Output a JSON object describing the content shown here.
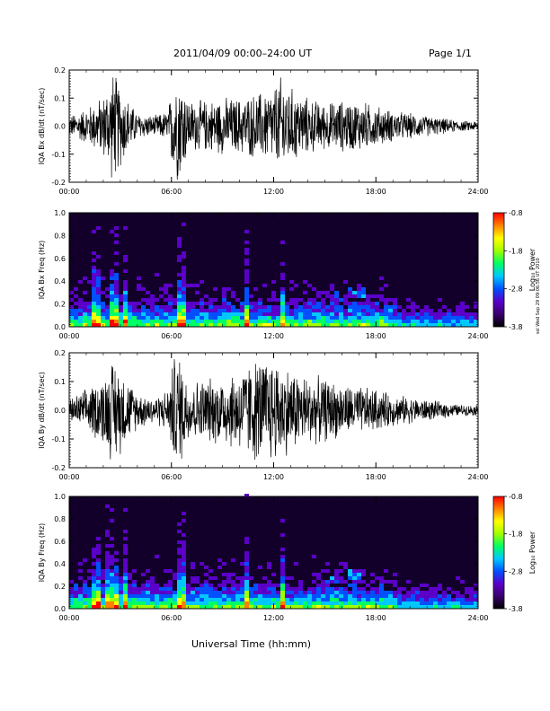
{
  "header": {
    "title": "2011/04/09  00:00–24:00 UT",
    "page": "Page 1/1"
  },
  "footer": {
    "xlabel": "Universal Time (hh:mm)",
    "stamp": "ssl Wed Sep 29 09:06:56 UT 2010"
  },
  "colors": {
    "trace": "#000000",
    "spec_bg": "#12002a",
    "colormap": [
      "#000000",
      "#3a006b",
      "#5a00c8",
      "#0050ff",
      "#00c8ff",
      "#00ff64",
      "#a0ff00",
      "#ffff00",
      "#ff8000",
      "#ff0000"
    ]
  },
  "chart_data": [
    {
      "type": "line",
      "ylabel": "IQA Bx dB/dt (nT/sec)",
      "xlim": [
        0,
        24
      ],
      "ylim": [
        -0.2,
        0.2
      ],
      "x_ticks": [
        "00:00",
        "06:00",
        "12:00",
        "18:00",
        "24:00"
      ],
      "y_ticks": [
        "-0.2",
        "-0.1",
        "0.0",
        "0.1",
        "0.2"
      ],
      "series": [
        {
          "envelope_x_hours": [
            0,
            1,
            2,
            2.6,
            3,
            3.5,
            4,
            5,
            5.8,
            6.2,
            6.6,
            7,
            8,
            9,
            10,
            11,
            12,
            12.5,
            13,
            14,
            15,
            16,
            17,
            18,
            19,
            20,
            21,
            22,
            23,
            24
          ],
          "amplitude": [
            0.04,
            0.07,
            0.12,
            0.22,
            0.16,
            0.1,
            0.05,
            0.04,
            0.06,
            0.22,
            0.2,
            0.1,
            0.1,
            0.11,
            0.11,
            0.13,
            0.15,
            0.2,
            0.15,
            0.11,
            0.09,
            0.1,
            0.1,
            0.08,
            0.06,
            0.05,
            0.04,
            0.03,
            0.02,
            0.02
          ]
        }
      ]
    },
    {
      "type": "heatmap",
      "ylabel": "IQA Bx Freq (Hz)",
      "colorbar_label": "Log₁₀ Power",
      "xlim": [
        0,
        24
      ],
      "ylim": [
        0,
        1.0
      ],
      "clim": [
        -3.8,
        -0.8
      ],
      "x_ticks": [
        "00:00",
        "06:00",
        "12:00",
        "18:00",
        "24:00"
      ],
      "y_ticks": [
        "0.0",
        "0.2",
        "0.4",
        "0.6",
        "0.8",
        "1.0"
      ],
      "colorbar_ticks": [
        "-0.8",
        "-1.8",
        "-2.8",
        "-3.8"
      ],
      "bursts_hours": [
        1.2,
        1.5,
        2.3,
        2.6,
        3.1,
        6.3,
        6.5,
        10.3,
        12.3
      ],
      "pulsation_patches": [
        {
          "x": [
            14.8,
            15.6
          ],
          "y": [
            0.22,
            0.3
          ]
        },
        {
          "x": [
            16.3,
            17.2
          ],
          "y": [
            0.25,
            0.34
          ]
        }
      ]
    },
    {
      "type": "line",
      "ylabel": "IQA By dB/dt (nT/sec)",
      "xlim": [
        0,
        24
      ],
      "ylim": [
        -0.2,
        0.2
      ],
      "x_ticks": [
        "00:00",
        "06:00",
        "12:00",
        "18:00",
        "24:00"
      ],
      "y_ticks": [
        "-0.2",
        "-0.1",
        "0.0",
        "0.1",
        "0.2"
      ],
      "series": [
        {
          "envelope_x_hours": [
            0,
            1,
            2,
            2.6,
            3,
            3.5,
            4,
            5,
            5.8,
            6.2,
            6.6,
            7,
            8,
            9,
            10,
            11,
            12,
            12.5,
            13,
            14,
            15,
            16,
            17,
            18,
            19,
            20,
            21,
            22,
            23,
            24
          ],
          "amplitude": [
            0.04,
            0.08,
            0.13,
            0.2,
            0.16,
            0.11,
            0.07,
            0.05,
            0.08,
            0.22,
            0.2,
            0.11,
            0.12,
            0.13,
            0.16,
            0.2,
            0.2,
            0.18,
            0.16,
            0.13,
            0.12,
            0.1,
            0.09,
            0.08,
            0.06,
            0.05,
            0.04,
            0.03,
            0.02,
            0.02
          ]
        }
      ]
    },
    {
      "type": "heatmap",
      "ylabel": "IQA By Freq (Hz)",
      "colorbar_label": "Log₁₀ Power",
      "xlim": [
        0,
        24
      ],
      "ylim": [
        0,
        1.0
      ],
      "clim": [
        -3.8,
        -0.8
      ],
      "x_ticks": [
        "00:00",
        "06:00",
        "12:00",
        "18:00",
        "24:00"
      ],
      "y_ticks": [
        "0.0",
        "0.2",
        "0.4",
        "0.6",
        "0.8",
        "1.0"
      ],
      "colorbar_ticks": [
        "-0.8",
        "-1.8",
        "-2.8",
        "-3.8"
      ],
      "bursts_hours": [
        1.2,
        1.5,
        2.0,
        2.3,
        2.6,
        3.1,
        6.3,
        6.5,
        10.3,
        12.3
      ],
      "pulsation_patches": [
        {
          "x": [
            14.8,
            15.6
          ],
          "y": [
            0.2,
            0.28
          ]
        },
        {
          "x": [
            16.3,
            17.2
          ],
          "y": [
            0.22,
            0.32
          ]
        }
      ]
    }
  ]
}
